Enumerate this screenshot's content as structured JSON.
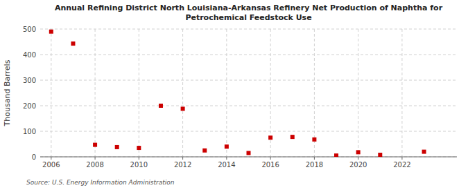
{
  "chart_data": {
    "type": "scatter",
    "title": "Annual Refining District North Louisiana-Arkansas Refinery Net Production of Naphtha for\nPetrochemical Feedstock Use",
    "ylabel": "Thousand Barrels",
    "source": "Source: U.S. Energy Information Administration",
    "x": [
      2006,
      2007,
      2008,
      2009,
      2010,
      2011,
      2012,
      2013,
      2014,
      2015,
      2016,
      2017,
      2018,
      2019,
      2020,
      2021,
      2023
    ],
    "values": [
      490,
      443,
      47,
      38,
      35,
      200,
      188,
      25,
      40,
      15,
      75,
      78,
      68,
      5,
      18,
      8,
      20
    ],
    "color": "#cc0000",
    "marker": "square",
    "xlim": [
      2005.5,
      2024.5
    ],
    "ylim": [
      0,
      500
    ],
    "xticks": [
      2006,
      2008,
      2010,
      2012,
      2014,
      2016,
      2018,
      2020,
      2022
    ],
    "yticks": [
      0,
      100,
      200,
      300,
      400,
      500
    ],
    "grid": true
  }
}
